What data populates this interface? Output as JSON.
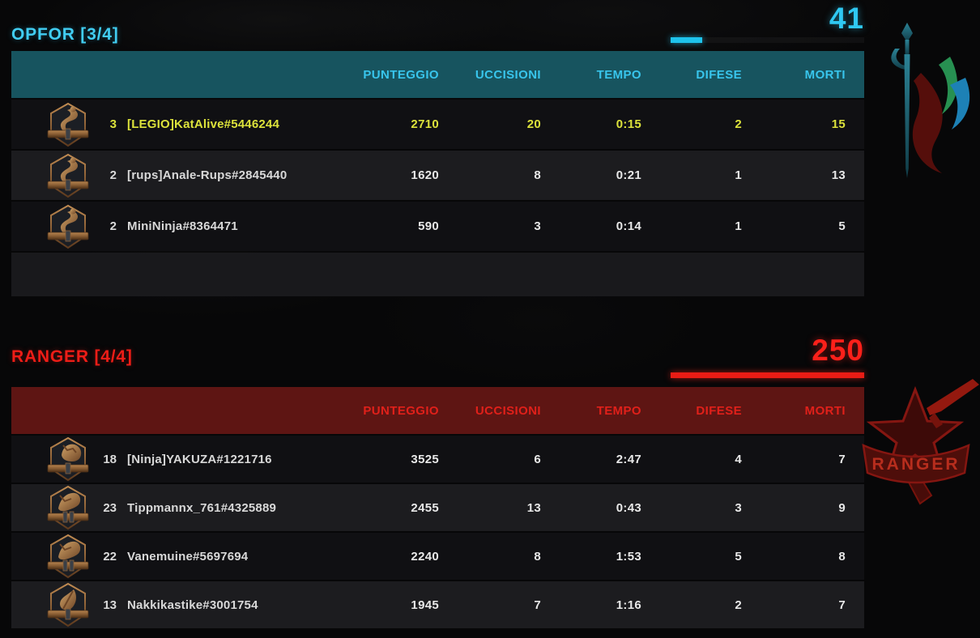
{
  "colors": {
    "cyan_accent": "#2fc8f2",
    "teal_header_bg": "#17545f",
    "red_accent": "#ee1d17",
    "maroon_header_bg": "#5e1513",
    "highlight_yellow": "#dce23b",
    "row_text": "#e8e8e8"
  },
  "columns": {
    "score": "PUNTEGGIO",
    "kills": "UCCISIONI",
    "time": "TEMPO",
    "defenses": "DIFESE",
    "deaths": "MORTI"
  },
  "teams": [
    {
      "title": "OPFOR [3/4]",
      "total": "41",
      "progress_pct": 16.4,
      "players": [
        {
          "rank": "3",
          "name": "[LEGIO]KatAlive#5446244",
          "score": "2710",
          "kills": "20",
          "time": "0:15",
          "defenses": "2",
          "deaths": "15"
        },
        {
          "rank": "2",
          "name": "[rups]Anale-Rups#2845440",
          "score": "1620",
          "kills": "8",
          "time": "0:21",
          "defenses": "1",
          "deaths": "13"
        },
        {
          "rank": "2",
          "name": "MiniNinja#8364471",
          "score": "590",
          "kills": "3",
          "time": "0:14",
          "defenses": "1",
          "deaths": "5"
        }
      ]
    },
    {
      "title": "RANGER [4/4]",
      "total": "250",
      "progress_pct": 100,
      "players": [
        {
          "rank": "18",
          "name": "[Ninja]YAKUZA#1221716",
          "score": "3525",
          "kills": "6",
          "time": "2:47",
          "defenses": "4",
          "deaths": "7"
        },
        {
          "rank": "23",
          "name": "Tippmannx_761#4325889",
          "score": "2455",
          "kills": "13",
          "time": "0:43",
          "defenses": "3",
          "deaths": "9"
        },
        {
          "rank": "22",
          "name": "Vanemuine#5697694",
          "score": "2240",
          "kills": "8",
          "time": "1:53",
          "defenses": "5",
          "deaths": "8"
        },
        {
          "rank": "13",
          "name": "Nakkikastike#3001754",
          "score": "1945",
          "kills": "7",
          "time": "1:16",
          "defenses": "2",
          "deaths": "7"
        }
      ]
    }
  ],
  "emblems": {
    "ranger_banner_text": "RANGER"
  }
}
